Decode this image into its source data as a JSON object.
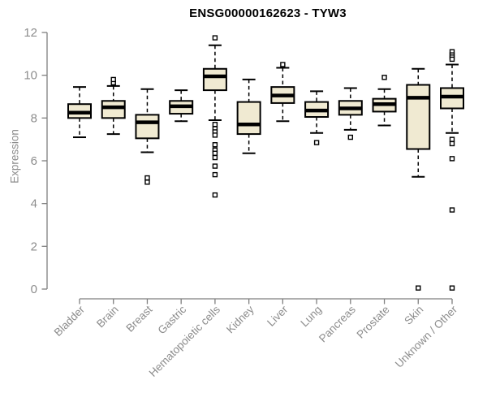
{
  "chart_data": {
    "type": "boxplot",
    "title": "ENSG00000162623 - TYW3",
    "ylabel": "Expression",
    "xlabel": "",
    "ylim": [
      0,
      12
    ],
    "yticks": [
      0,
      2,
      4,
      6,
      8,
      10,
      12
    ],
    "grid": false,
    "legend": false,
    "categories": [
      "Bladder",
      "Brain",
      "Breast",
      "Gastric",
      "Hematopoietic cells",
      "Kidney",
      "Liver",
      "Lung",
      "Pancreas",
      "Prostate",
      "Skin",
      "Unknown / Other"
    ],
    "series": [
      {
        "name": "Bladder",
        "whisker_low": 7.1,
        "q1": 8.0,
        "median": 8.25,
        "q3": 8.65,
        "whisker_high": 9.45,
        "outliers": []
      },
      {
        "name": "Brain",
        "whisker_low": 7.25,
        "q1": 8.0,
        "median": 8.5,
        "q3": 8.8,
        "whisker_high": 9.5,
        "outliers": [
          9.65,
          9.8
        ]
      },
      {
        "name": "Breast",
        "whisker_low": 6.4,
        "q1": 7.05,
        "median": 7.8,
        "q3": 8.15,
        "whisker_high": 9.35,
        "outliers": [
          5.2,
          5.0
        ]
      },
      {
        "name": "Gastric",
        "whisker_low": 7.85,
        "q1": 8.2,
        "median": 8.55,
        "q3": 8.8,
        "whisker_high": 9.3,
        "outliers": []
      },
      {
        "name": "Hematopoietic cells",
        "whisker_low": 7.9,
        "q1": 9.3,
        "median": 9.95,
        "q3": 10.3,
        "whisker_high": 11.4,
        "outliers": [
          11.75,
          7.7,
          7.5,
          7.35,
          7.2,
          6.75,
          6.5,
          6.35,
          6.15,
          5.75,
          5.35,
          4.4
        ]
      },
      {
        "name": "Kidney",
        "whisker_low": 6.35,
        "q1": 7.25,
        "median": 7.7,
        "q3": 8.75,
        "whisker_high": 9.8,
        "outliers": []
      },
      {
        "name": "Liver",
        "whisker_low": 7.85,
        "q1": 8.7,
        "median": 9.05,
        "q3": 9.45,
        "whisker_high": 10.35,
        "outliers": [
          10.5
        ]
      },
      {
        "name": "Lung",
        "whisker_low": 7.3,
        "q1": 8.05,
        "median": 8.35,
        "q3": 8.75,
        "whisker_high": 9.25,
        "outliers": [
          6.85
        ]
      },
      {
        "name": "Pancreas",
        "whisker_low": 7.45,
        "q1": 8.15,
        "median": 8.45,
        "q3": 8.8,
        "whisker_high": 9.4,
        "outliers": [
          7.1
        ]
      },
      {
        "name": "Prostate",
        "whisker_low": 7.65,
        "q1": 8.3,
        "median": 8.65,
        "q3": 8.9,
        "whisker_high": 9.35,
        "outliers": [
          9.9
        ]
      },
      {
        "name": "Skin",
        "whisker_low": 5.25,
        "q1": 6.55,
        "median": 8.95,
        "q3": 9.55,
        "whisker_high": 10.3,
        "outliers": [
          0.05
        ]
      },
      {
        "name": "Unknown / Other",
        "whisker_low": 7.3,
        "q1": 8.45,
        "median": 9.0,
        "q3": 9.4,
        "whisker_high": 10.5,
        "outliers": [
          11.1,
          10.95,
          10.85,
          10.75,
          7.0,
          6.8,
          6.1,
          3.7,
          0.05
        ]
      }
    ],
    "colors": {
      "box_fill": "#F0EAD2",
      "box_border": "#000000",
      "median": "#000000",
      "axis": "#7f7f7f",
      "tick_label": "#8c8c8c",
      "title": "#000000"
    }
  }
}
